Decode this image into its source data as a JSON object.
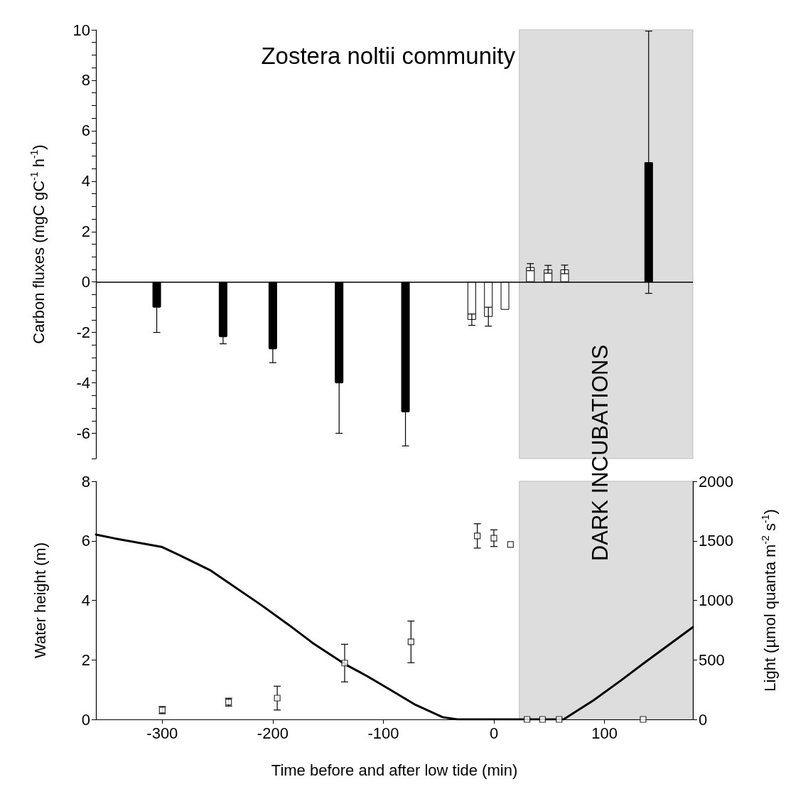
{
  "chart_data": [
    {
      "type": "bar",
      "annotations": [
        "Zostera noltii community"
      ],
      "ylabel": "Carbon fluxes (mgC gC$^{-1}$ h$^{-1}$)",
      "xlim": [
        -360,
        180
      ],
      "ylim": [
        -7,
        10
      ],
      "yticks": [
        {
          "value": -7,
          "label": null
        },
        -6,
        {
          "value": -5.5,
          "label": null
        },
        {
          "value": -5,
          "label": null
        },
        {
          "value": -4.5,
          "label": null
        },
        -4,
        {
          "value": -3.5,
          "label": null
        },
        {
          "value": -3,
          "label": null
        },
        {
          "value": -2.5,
          "label": null
        },
        -2,
        {
          "value": -1.5,
          "label": null
        },
        {
          "value": -1,
          "label": null
        },
        {
          "value": -0.5,
          "label": null
        },
        0,
        {
          "value": 0.5,
          "label": null
        },
        {
          "value": 1,
          "label": null
        },
        {
          "value": 1.5,
          "label": null
        },
        2,
        {
          "value": 2.5,
          "label": null
        },
        {
          "value": 3,
          "label": null
        },
        {
          "value": 3.5,
          "label": null
        },
        4,
        {
          "value": 4.5,
          "label": null
        },
        {
          "value": 5,
          "label": null
        },
        {
          "value": 5.5,
          "label": null
        },
        6,
        {
          "value": 6.5,
          "label": null
        },
        {
          "value": 7,
          "label": null
        },
        {
          "value": 7.5,
          "label": null
        },
        8,
        {
          "value": 8.5,
          "label": null
        },
        {
          "value": 9,
          "label": null
        },
        {
          "value": 9.5,
          "label": null
        },
        10
      ],
      "tick_labels": "y",
      "grid": false,
      "ref_lines": [
        {
          "axis": "y",
          "value": 0,
          "color": "#000000"
        }
      ],
      "bands": [
        {
          "axis": "x",
          "from": 23,
          "to": 180,
          "color": "#dddddd"
        }
      ],
      "series": [
        {
          "colors": [
            "#000000",
            "#000000",
            "#000000",
            "#000000",
            "#000000",
            "#ffffff",
            "#ffffff",
            "#ffffff",
            "#ffffff",
            "#ffffff",
            "#ffffff",
            "#000000"
          ],
          "x": [
            -305,
            -245,
            -200,
            -140,
            -80,
            -20,
            -5,
            10,
            33,
            49,
            64,
            140
          ],
          "values": [
            -1.0,
            -2.17,
            -2.65,
            -4.0,
            -5.15,
            -1.5,
            -1.38,
            -1.1,
            0.59,
            0.5,
            0.5,
            4.75
          ],
          "errors": [
            [
              -2.0,
              -1.0
            ],
            [
              -2.45,
              -2.17
            ],
            [
              -3.2,
              -2.65
            ],
            [
              -6.0,
              -4.0
            ],
            [
              -6.5,
              -5.15
            ],
            [
              -1.72,
              -1.27
            ],
            [
              -1.75,
              -1.0
            ],
            null,
            [
              0.45,
              0.73
            ],
            [
              0.35,
              0.66
            ],
            [
              0.33,
              0.67
            ],
            [
              -0.45,
              9.95
            ]
          ]
        }
      ]
    },
    {
      "type": "line",
      "xlabel": "Time before and after low tide (min)",
      "ylabel": "Water height (m)",
      "y2label": "Light (µmol quanta m$^{-2}$ s$^{-1}$)",
      "xlim": [
        -360,
        180
      ],
      "xticks": [
        -300,
        -200,
        -100,
        0,
        100
      ],
      "ylim": [
        0,
        8
      ],
      "yticks": [
        0,
        2,
        4,
        6,
        8
      ],
      "y2lim": [
        0,
        2000
      ],
      "y2ticks": [
        0,
        500,
        1000,
        1500,
        2000
      ],
      "grid": false,
      "marker": "square",
      "line_style": "solid",
      "bands": [
        {
          "axis": "x",
          "from": 23,
          "to": 180,
          "color": "#dddddd",
          "label": "DARK INCUBATIONS"
        }
      ],
      "series": [
        {
          "type": "line",
          "color": "#000000",
          "marker": "none",
          "x": [
            -360,
            -343,
            -300,
            -279,
            -257,
            -210,
            -185,
            -164,
            -135,
            -114,
            -93,
            -71,
            -46,
            -33,
            0,
            30,
            63,
            90,
            115,
            136,
            180
          ],
          "values": [
            6.21,
            6.08,
            5.79,
            5.42,
            5.02,
            3.83,
            3.16,
            2.57,
            1.86,
            1.44,
            0.98,
            0.49,
            0.07,
            0,
            0,
            0,
            0,
            0.64,
            1.31,
            1.9,
            3.1
          ]
        },
        {
          "type": "scatter",
          "axis": "y2",
          "color": "#ffffff",
          "x": [
            -300,
            -240,
            -196,
            -135,
            -75,
            -15,
            0,
            15,
            30,
            44,
            59,
            135
          ],
          "values": [
            78,
            145,
            179,
            473,
            651,
            1541,
            1522,
            1469,
            0,
            0,
            0,
            0
          ],
          "errors": [
            30,
            33,
            100,
            158,
            175,
            102,
            70,
            null,
            null,
            null,
            null,
            null
          ]
        }
      ]
    }
  ]
}
